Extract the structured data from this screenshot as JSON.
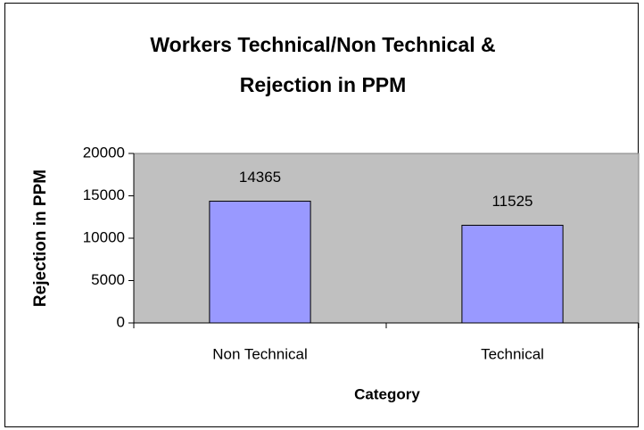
{
  "chart_data": {
    "type": "bar",
    "title": "Workers Technical/Non Technical & Rejection in PPM",
    "x_label": "Category",
    "y_label": "Rejection in PPM",
    "categories": [
      "Non Technical",
      "Technical"
    ],
    "values": [
      14365,
      11525
    ],
    "color": "#9999ff",
    "plot_background": "#c0c0c0",
    "ylim": [
      0,
      20000
    ],
    "yticks": [
      0,
      5000,
      10000,
      15000,
      20000
    ],
    "grid": false
  }
}
